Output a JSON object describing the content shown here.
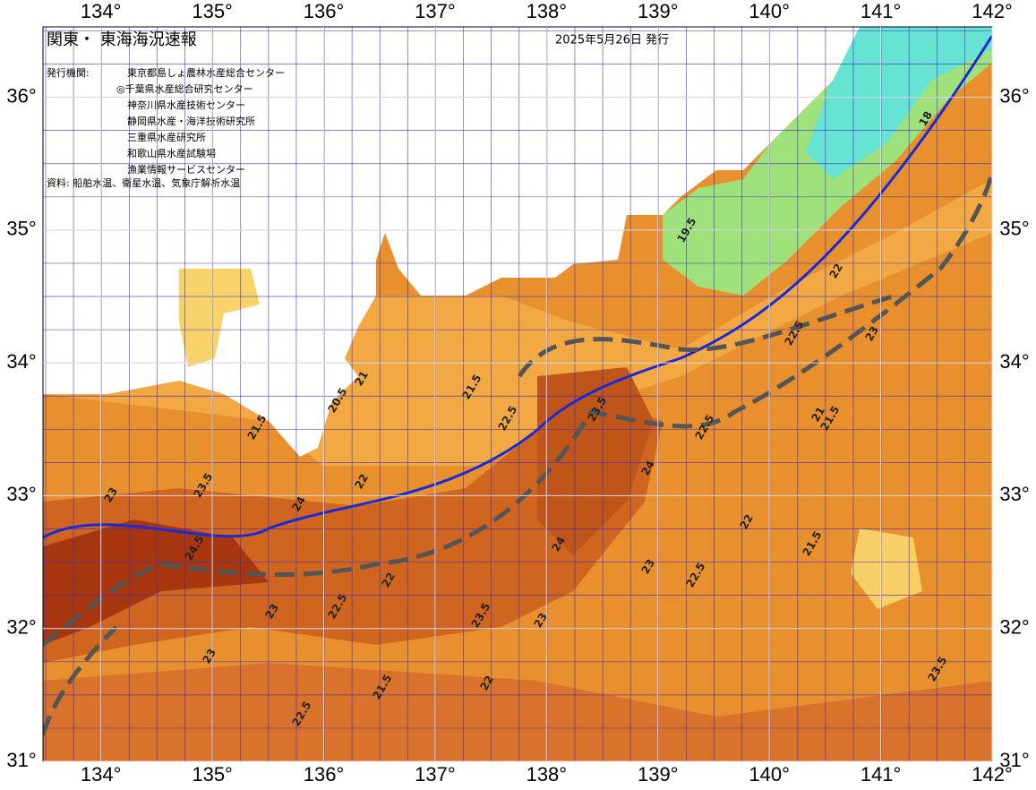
{
  "map": {
    "title": "関東・ 東海海況速報",
    "date": "2025年5月26日 発行",
    "issuer_label": "発行機関:",
    "issuers": [
      "東京都島しょ農林水産総合センター",
      "◎千葉県水産総合研究センター",
      "神奈川県水産技術センター",
      "静岡県水産・海洋技術研究所",
      "三重県水産研究所",
      "和歌山県水産試験場",
      "漁業情報サービスセンター"
    ],
    "source": "資料: 船舶水温、衛星水温、気象庁解析水温",
    "xlim": [
      133.48,
      142
    ],
    "ylim": [
      31,
      36.53
    ],
    "lon_ticks": [
      {
        "value": 134,
        "label": "134°"
      },
      {
        "value": 135,
        "label": "135°"
      },
      {
        "value": 136,
        "label": "136°"
      },
      {
        "value": 137,
        "label": "137°"
      },
      {
        "value": 138,
        "label": "138°"
      },
      {
        "value": 139,
        "label": "139°"
      },
      {
        "value": 140,
        "label": "140°"
      },
      {
        "value": 141,
        "label": "141°"
      },
      {
        "value": 142,
        "label": "142°"
      }
    ],
    "lat_ticks": [
      {
        "value": 31,
        "label": "31°"
      },
      {
        "value": 32,
        "label": "32°"
      },
      {
        "value": 33,
        "label": "33°"
      },
      {
        "value": 34,
        "label": "34°"
      },
      {
        "value": 35,
        "label": "35°"
      },
      {
        "value": 36,
        "label": "36°"
      }
    ],
    "isotherm_labels": [
      "21.5",
      "21",
      "20.5",
      "21.5",
      "22",
      "22.5",
      "23",
      "23.5",
      "24",
      "24.5",
      "23",
      "22.5",
      "22",
      "23.5",
      "24",
      "23",
      "22.5",
      "21.5",
      "22",
      "23",
      "22.5",
      "21.5",
      "22",
      "23",
      "23.5",
      "22.5",
      "21.5",
      "18",
      "19.5",
      "22",
      "21",
      "23",
      "22.5",
      "24",
      "23.5"
    ]
  }
}
